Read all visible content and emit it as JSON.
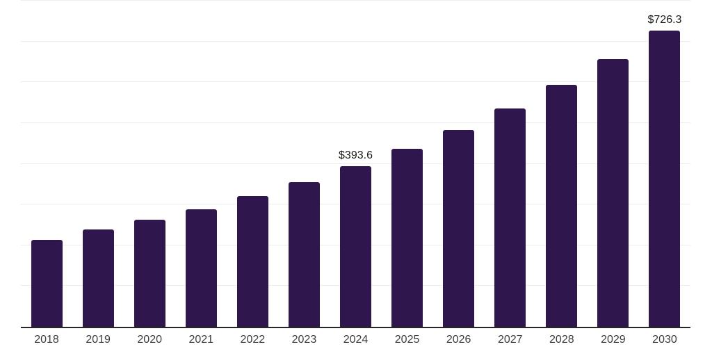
{
  "chart_data": {
    "type": "bar",
    "title": "",
    "xlabel": "",
    "ylabel": "",
    "categories": [
      "2018",
      "2019",
      "2020",
      "2021",
      "2022",
      "2023",
      "2024",
      "2025",
      "2026",
      "2027",
      "2028",
      "2029",
      "2030"
    ],
    "values": [
      213.2,
      238.8,
      263.3,
      288.3,
      320.2,
      354.9,
      393.6,
      436.3,
      482.5,
      535.9,
      593.0,
      657.0,
      726.3
    ],
    "bar_labels": [
      "",
      "",
      "",
      "",
      "",
      "",
      "$393.6",
      "",
      "",
      "",
      "",
      "",
      "$726.3"
    ],
    "ylim": [
      0,
      800
    ],
    "gridline_step": 100,
    "grid": "horizontal",
    "legend": "none",
    "currency_prefix": "$",
    "colors": {
      "bar": "#2f174d",
      "gridline": "#ededed",
      "axis_line": "#262626",
      "tick_label": "#3d3d3d",
      "data_label": "#1a1a1a",
      "background": "#ffffff"
    }
  }
}
